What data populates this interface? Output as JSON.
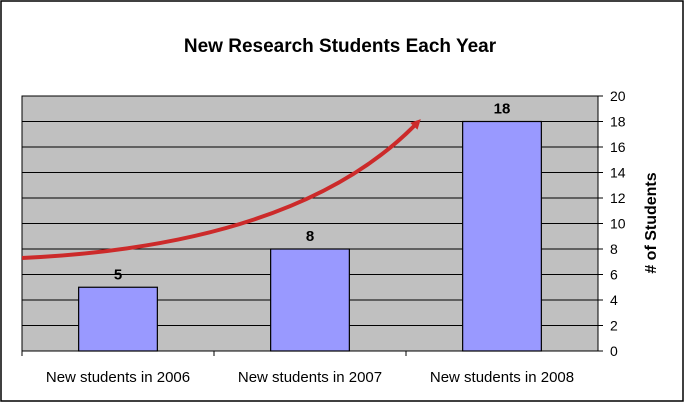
{
  "chart_data": {
    "type": "bar",
    "title": "New Research Students Each Year",
    "xlabel": "",
    "ylabel": "# of Students",
    "categories": [
      "New students in 2006",
      "New students in 2007",
      "New students in 2008"
    ],
    "values": [
      5,
      8,
      18
    ],
    "data_labels": [
      "5",
      "8",
      "18"
    ],
    "ylim": [
      0,
      20
    ],
    "y_ticks": [
      "0",
      "2",
      "4",
      "6",
      "8",
      "10",
      "12",
      "14",
      "16",
      "18",
      "20"
    ],
    "y_axis_side": "right",
    "grid": true,
    "legend": "none",
    "annotation": "red upward-curving trend arrow",
    "colors": {
      "bar_fill": "#9999ff",
      "bar_stroke": "#000000",
      "plot_background": "#c0c0c0",
      "gridline": "#000000",
      "arrow": "#cc2a2a",
      "frame": "#000000"
    }
  }
}
